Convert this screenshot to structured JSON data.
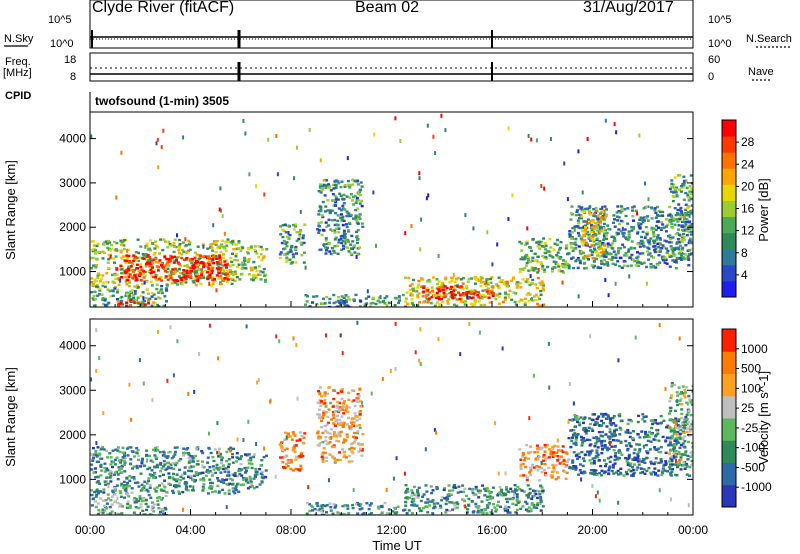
{
  "header": {
    "station": "Clyde River (fitACF)",
    "beam": "Beam 02",
    "date": "31/Aug/2017"
  },
  "panel_labels": {
    "nsky": "N.Sky",
    "nsearch": "N.Search",
    "freq_top": "Freq.",
    "freq_unit": "[MHz]",
    "cpid": "CPID",
    "nave": "Nave",
    "mode_text": "twofsound (1-min) 3505"
  },
  "noise_axis": {
    "left_ticks": [
      "10^5",
      "10^0"
    ],
    "right_ticks": [
      "10^5",
      "10^0"
    ]
  },
  "freq_axis": {
    "left_ticks": [
      "18",
      "8"
    ],
    "right_ticks": [
      "60",
      "0"
    ]
  },
  "chart_data": [
    {
      "type": "heatmap",
      "name": "power",
      "xlabel": "",
      "ylabel": "Slant Range [km]",
      "x_ticks": [
        "00:00",
        "04:00",
        "08:00",
        "12:00",
        "16:00",
        "20:00",
        "00:00"
      ],
      "y_ticks": [
        1000,
        2000,
        3000,
        4000
      ],
      "xlim_hours": [
        0,
        24
      ],
      "ylim_km": [
        200,
        4600
      ],
      "colorbar": {
        "label": "Power [dB]",
        "ticks": [
          4,
          8,
          12,
          16,
          20,
          24,
          28
        ],
        "colors": [
          "#1e1ef0",
          "#2848c8",
          "#2e7a9a",
          "#2f8a5a",
          "#4aa858",
          "#9acd32",
          "#e8d800",
          "#ffa500",
          "#ff7200",
          "#ff3a00",
          "#ff0000"
        ]
      },
      "regions": [
        {
          "t0": 0.0,
          "t1": 5.9,
          "r0": 700,
          "r1": 1750,
          "level": 0.5
        },
        {
          "t0": 1.0,
          "t1": 5.5,
          "r0": 800,
          "r1": 1400,
          "level": 0.95
        },
        {
          "t0": 0.0,
          "t1": 3.0,
          "r0": 200,
          "r1": 700,
          "level": 0.35
        },
        {
          "t0": 1.0,
          "t1": 2.5,
          "r0": 200,
          "r1": 400,
          "level": 0.9
        },
        {
          "t0": 5.9,
          "t1": 7.0,
          "r0": 800,
          "r1": 1600,
          "level": 0.45
        },
        {
          "t0": 7.5,
          "t1": 8.5,
          "r0": 1200,
          "r1": 2100,
          "level": 0.35
        },
        {
          "t0": 9.0,
          "t1": 10.8,
          "r0": 1400,
          "r1": 3100,
          "level": 0.3
        },
        {
          "t0": 8.5,
          "t1": 12.5,
          "r0": 200,
          "r1": 500,
          "level": 0.3
        },
        {
          "t0": 12.5,
          "t1": 18.0,
          "r0": 250,
          "r1": 900,
          "level": 0.55
        },
        {
          "t0": 13.2,
          "t1": 16.0,
          "r0": 400,
          "r1": 700,
          "level": 0.95
        },
        {
          "t0": 17.0,
          "t1": 19.0,
          "r0": 1000,
          "r1": 1800,
          "level": 0.4
        },
        {
          "t0": 19.0,
          "t1": 23.8,
          "r0": 1100,
          "r1": 2500,
          "level": 0.3
        },
        {
          "t0": 19.5,
          "t1": 20.5,
          "r0": 1300,
          "r1": 2400,
          "level": 0.6
        },
        {
          "t0": 23.0,
          "t1": 24.0,
          "r0": 1300,
          "r1": 3200,
          "level": 0.35
        }
      ]
    },
    {
      "type": "heatmap",
      "name": "velocity",
      "xlabel": "Time UT",
      "ylabel": "Slant Range [km]",
      "x_ticks": [
        "00:00",
        "04:00",
        "08:00",
        "12:00",
        "16:00",
        "20:00",
        "00:00"
      ],
      "y_ticks": [
        1000,
        2000,
        3000,
        4000
      ],
      "xlim_hours": [
        0,
        24
      ],
      "ylim_km": [
        200,
        4600
      ],
      "colorbar": {
        "label": "Velocity [m s^-1]",
        "ticks": [
          "1000",
          "500",
          "100",
          "25",
          "-25",
          "-100",
          "-500",
          "-1000"
        ],
        "colors": [
          "#2838b8",
          "#2f6aa8",
          "#2f8a5a",
          "#5bb85b",
          "#bebebe",
          "#ffa020",
          "#ff7a00",
          "#ff2000"
        ]
      },
      "regions": [
        {
          "t0": 0.0,
          "t1": 5.9,
          "r0": 700,
          "r1": 1750,
          "level": 0.3
        },
        {
          "t0": 0.0,
          "t1": 3.0,
          "r0": 200,
          "r1": 700,
          "level": 0.4
        },
        {
          "t0": 5.9,
          "t1": 7.0,
          "r0": 800,
          "r1": 1600,
          "level": 0.3
        },
        {
          "t0": 7.5,
          "t1": 8.5,
          "r0": 1200,
          "r1": 2100,
          "level": 0.75
        },
        {
          "t0": 9.0,
          "t1": 10.8,
          "r0": 1400,
          "r1": 3100,
          "level": 0.7
        },
        {
          "t0": 8.5,
          "t1": 12.5,
          "r0": 200,
          "r1": 500,
          "level": 0.35
        },
        {
          "t0": 12.5,
          "t1": 18.0,
          "r0": 250,
          "r1": 900,
          "level": 0.3
        },
        {
          "t0": 17.0,
          "t1": 19.0,
          "r0": 1000,
          "r1": 1800,
          "level": 0.75
        },
        {
          "t0": 19.0,
          "t1": 23.8,
          "r0": 1100,
          "r1": 2500,
          "level": 0.2
        },
        {
          "t0": 23.0,
          "t1": 24.0,
          "r0": 1300,
          "r1": 3200,
          "level": 0.45
        }
      ]
    }
  ]
}
